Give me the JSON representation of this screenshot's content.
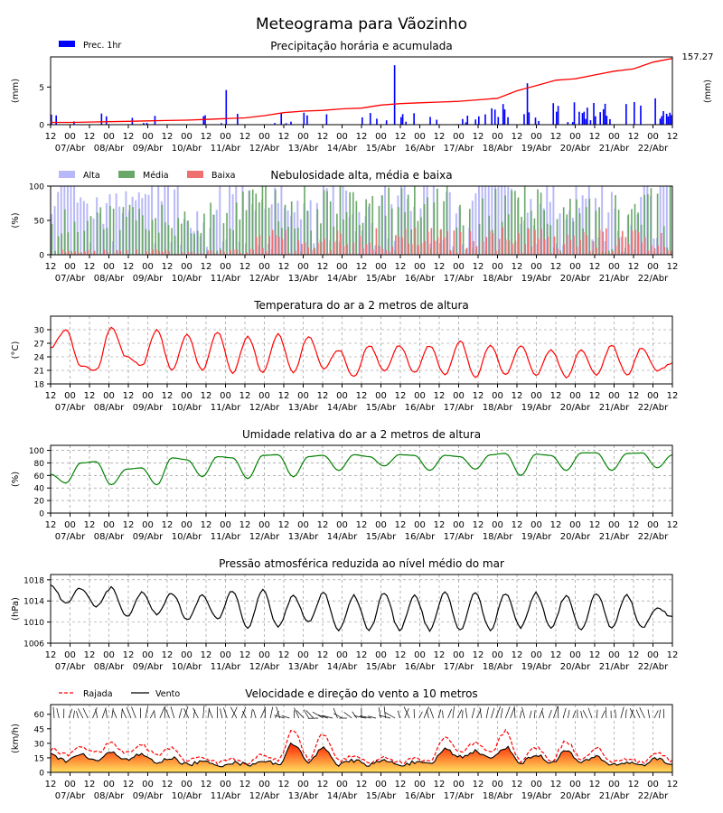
{
  "title": "Meteograma para Vãozinho",
  "time_axis": {
    "tick_labels": [
      "12",
      "00",
      "12",
      "00",
      "12",
      "00",
      "12",
      "00",
      "12",
      "00",
      "12",
      "00",
      "12",
      "00",
      "12",
      "00",
      "12",
      "00",
      "12",
      "00",
      "12",
      "00",
      "12",
      "00",
      "12",
      "00",
      "12",
      "00",
      "12",
      "00",
      "12",
      "00",
      "12"
    ],
    "day_labels": [
      "07/Abr",
      "08/Abr",
      "09/Abr",
      "10/Abr",
      "11/Abr",
      "12/Abr",
      "13/Abr",
      "14/Abr",
      "15/Abr",
      "16/Abr",
      "17/Abr",
      "18/Abr",
      "19/Abr",
      "20/Abr",
      "21/Abr",
      "22/Abr"
    ]
  },
  "colors": {
    "precip_bar": "#0000ff",
    "precip_accum": "#ff0000",
    "cloud_high": "#b8b8f8",
    "cloud_mid": "#6aa86a",
    "cloud_low": "#f07070",
    "temperature": "#ff0000",
    "humidity": "#008000",
    "pressure": "#000000",
    "gust": "#ff0000",
    "wind": "#000000",
    "wind_fill_top": "#ff2000",
    "wind_fill_bottom": "#ffe060"
  },
  "chart_data": [
    {
      "type": "bar",
      "title": "Precipitação horária e acumulada",
      "ylabel": "(mm)",
      "ylabel_right": "(mm)",
      "ylim": [
        0,
        9
      ],
      "yticks": [
        "0",
        "5"
      ],
      "legend": [
        "Prec. 1hr"
      ],
      "accumulated_total": "157.27",
      "hourly_peaks_mm": [
        {
          "day": "12/Abr 12h",
          "value": 4.6
        },
        {
          "day": "15/Abr 00h",
          "value": 7.9
        },
        {
          "day": "17/Abr 00h",
          "value": 5.5
        },
        {
          "day": "22/Abr 00h",
          "value": 3.5
        }
      ]
    },
    {
      "type": "bar",
      "title": "Nebulosidade alta, média e baixa",
      "ylabel": "(%)",
      "ylim": [
        0,
        100
      ],
      "yticks": [
        "0",
        "50",
        "100"
      ],
      "legend": [
        "Alta",
        "Média",
        "Baixa"
      ]
    },
    {
      "type": "line",
      "title": "Temperatura do ar a 2 metros de altura",
      "ylabel": "(°C)",
      "ylim": [
        18,
        33
      ],
      "yticks": [
        "18",
        "21",
        "24",
        "27",
        "30"
      ],
      "series": [
        {
          "values": [
            26,
            30,
            22,
            21,
            30.5,
            24,
            22,
            30,
            21,
            29,
            21,
            29.5,
            20.5,
            28.5,
            20.5,
            29,
            20.5,
            28.5,
            21.5,
            25.5,
            19.5,
            26.5,
            21,
            26.5,
            20.5,
            26.5,
            20,
            27.5,
            19.5,
            26.5,
            20,
            26.5,
            20,
            25.5,
            19.5,
            25.5,
            20,
            26.5,
            20,
            26,
            21,
            22.5
          ]
        }
      ]
    },
    {
      "type": "line",
      "title": "Umidade relativa do ar a 2 metros de altura",
      "ylabel": "(%)",
      "ylim": [
        0,
        108
      ],
      "yticks": [
        "0",
        "20",
        "40",
        "60",
        "80",
        "100"
      ],
      "series": [
        {
          "values": [
            62,
            48,
            80,
            82,
            45,
            70,
            72,
            45,
            88,
            85,
            58,
            90,
            88,
            55,
            92,
            93,
            58,
            90,
            92,
            68,
            93,
            90,
            75,
            93,
            92,
            68,
            92,
            90,
            70,
            93,
            95,
            60,
            94,
            92,
            68,
            96,
            96,
            68,
            95,
            96,
            72,
            93
          ]
        }
      ]
    },
    {
      "type": "line",
      "title": "Pressão atmosférica reduzida ao nível médio do mar",
      "ylabel": "(hPa)",
      "ylim": [
        1006,
        1019
      ],
      "yticks": [
        "1006",
        "1010",
        "1014",
        "1018"
      ],
      "series": [
        {
          "values": [
            1017,
            1013.5,
            1016.5,
            1013,
            1016.5,
            1011,
            1015.5,
            1011.5,
            1015.5,
            1010.5,
            1015,
            1010.5,
            1016,
            1009,
            1016,
            1009,
            1015,
            1010,
            1015.5,
            1008.5,
            1015,
            1008.5,
            1015.5,
            1008.5,
            1015,
            1008.5,
            1015.5,
            1008.5,
            1015.5,
            1008.5,
            1015.5,
            1009,
            1015.5,
            1009,
            1015,
            1008.5,
            1015.5,
            1009,
            1015,
            1009,
            1012.5,
            1011
          ]
        }
      ]
    },
    {
      "type": "area",
      "title": "Velocidade e direção do vento a 10 metros",
      "ylabel": "(km/h)",
      "ylim": [
        0,
        70
      ],
      "yticks": [
        "0",
        "15",
        "30",
        "45",
        "60"
      ],
      "legend": [
        "Rajada",
        "Vento"
      ],
      "series": [
        {
          "name": "Rajada",
          "values": [
            24,
            18,
            27,
            20,
            30,
            20,
            28,
            18,
            25,
            12,
            16,
            10,
            14,
            10,
            18,
            12,
            44,
            14,
            40,
            12,
            18,
            10,
            16,
            10,
            14,
            12,
            36,
            20,
            30,
            20,
            42,
            12,
            26,
            12,
            32,
            14,
            26,
            10,
            14,
            10,
            20,
            12
          ]
        },
        {
          "name": "Vento",
          "values": [
            18,
            12,
            18,
            12,
            20,
            14,
            18,
            10,
            15,
            8,
            11,
            7,
            10,
            8,
            12,
            8,
            30,
            10,
            26,
            8,
            12,
            8,
            12,
            8,
            10,
            8,
            24,
            16,
            22,
            14,
            26,
            10,
            18,
            10,
            22,
            10,
            16,
            8,
            10,
            8,
            14,
            8
          ]
        }
      ]
    }
  ]
}
